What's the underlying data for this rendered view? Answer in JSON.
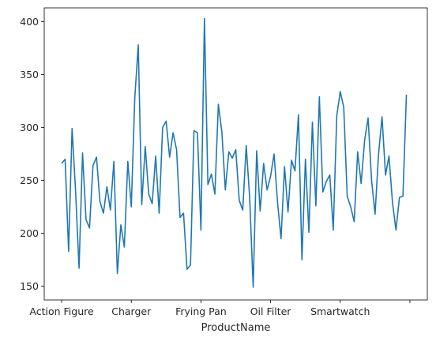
{
  "chart_data": {
    "type": "line",
    "title": "",
    "xlabel": "ProductName",
    "ylabel": "",
    "line_color": "#1f77b4",
    "grid": false,
    "legend": false,
    "x_ticks": [
      {
        "index": 0,
        "label": "Action Figure"
      },
      {
        "index": 20,
        "label": "Charger"
      },
      {
        "index": 40,
        "label": "Frying Pan"
      },
      {
        "index": 60,
        "label": "Oil Filter"
      },
      {
        "index": 80,
        "label": "Smartwatch"
      },
      {
        "index": 100,
        "label": ""
      }
    ],
    "y_ticks": [
      150,
      200,
      250,
      300,
      350,
      400
    ],
    "xlim": [
      -5,
      105
    ],
    "ylim": [
      137,
      413
    ],
    "values": [
      266,
      270,
      183,
      299,
      240,
      167,
      276,
      213,
      205,
      264,
      272,
      230,
      219,
      244,
      222,
      268,
      162,
      208,
      187,
      268,
      225,
      328,
      378,
      227,
      282,
      237,
      228,
      273,
      219,
      300,
      306,
      272,
      295,
      279,
      215,
      219,
      166,
      170,
      297,
      295,
      203,
      403,
      246,
      256,
      237,
      322,
      296,
      241,
      277,
      271,
      279,
      231,
      222,
      283,
      233,
      149,
      278,
      221,
      266,
      241,
      254,
      275,
      229,
      195,
      263,
      220,
      269,
      259,
      312,
      175,
      270,
      201,
      305,
      226,
      329,
      239,
      249,
      255,
      203,
      311,
      334,
      319,
      235,
      225,
      211,
      277,
      247,
      288,
      309,
      250,
      218,
      275,
      310,
      255,
      273,
      229,
      203,
      234,
      235,
      331
    ]
  }
}
